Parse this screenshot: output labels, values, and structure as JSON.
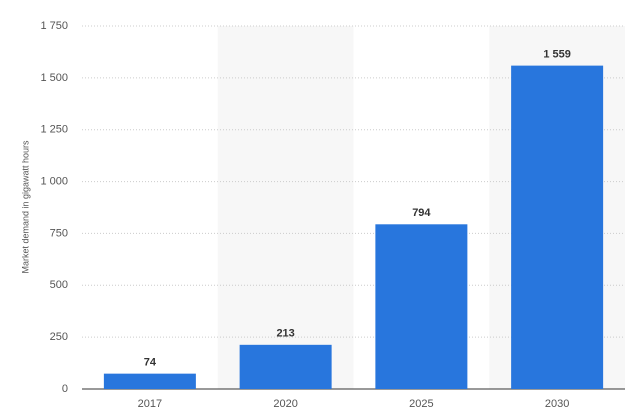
{
  "chart_data": {
    "type": "bar",
    "y_label": "Market demand in gigawatt hours",
    "categories": [
      "2017",
      "2020",
      "2025",
      "2030"
    ],
    "values": [
      74,
      213,
      794,
      1559
    ],
    "value_labels": [
      "74",
      "213",
      "794",
      "1 559"
    ],
    "color": "#2876dd",
    "ylim": [
      0,
      1750
    ],
    "yticks": [
      0,
      250,
      500,
      750,
      {
        "value": 1000,
        "label": "1 000"
      },
      {
        "value": 1250,
        "label": "1 250"
      },
      {
        "value": 1500,
        "label": "1 500"
      },
      {
        "value": 1750,
        "label": "1 750"
      }
    ],
    "grid": true
  }
}
